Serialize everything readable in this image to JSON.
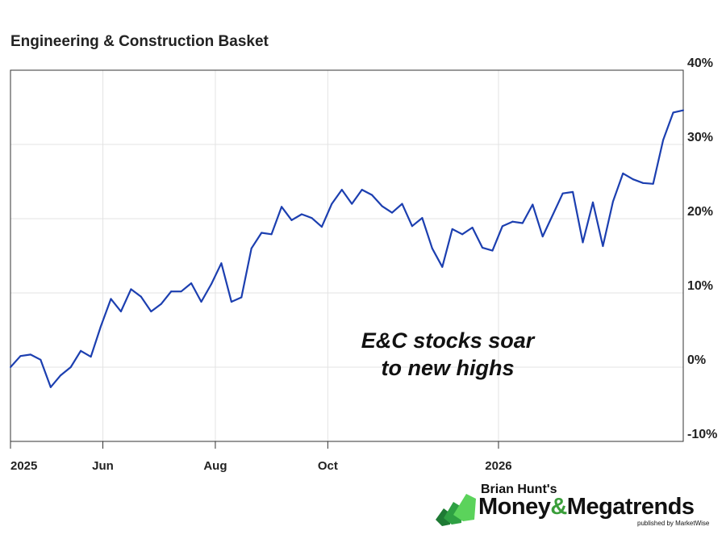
{
  "chart_data": {
    "type": "line",
    "title": "Engineering & Construction Basket",
    "y_ticks": [
      "40%",
      "30%",
      "20%",
      "10%",
      "0%",
      "-10%"
    ],
    "y_tick_values": [
      40,
      30,
      20,
      10,
      0,
      -10
    ],
    "ylim": [
      -10,
      40
    ],
    "x_ticks": [
      "2025",
      "Jun",
      "Aug",
      "Oct",
      "2026"
    ],
    "x_tick_positions": [
      0,
      9.2,
      20.4,
      31.6,
      48.6
    ],
    "xlim": [
      0,
      67
    ],
    "annotation_line1": "E&C stocks soar",
    "annotation_line2": "to new highs",
    "line_color": "#1c3fb0",
    "series": [
      {
        "name": "Engineering & Construction Basket",
        "values": [
          0.0,
          1.5,
          1.7,
          1.0,
          -2.7,
          -1.1,
          0.0,
          2.2,
          1.4,
          5.5,
          9.2,
          7.5,
          10.5,
          9.5,
          7.5,
          8.5,
          10.2,
          10.2,
          11.3,
          8.8,
          11.2,
          14.0,
          8.8,
          9.4,
          16.0,
          18.1,
          17.9,
          21.6,
          19.8,
          20.6,
          20.1,
          18.9,
          22.0,
          23.9,
          22.0,
          23.9,
          23.2,
          21.7,
          20.8,
          22.0,
          19.0,
          20.1,
          16.0,
          13.5,
          18.6,
          17.9,
          18.8,
          16.1,
          15.7,
          19.0,
          19.6,
          19.4,
          21.9,
          17.6,
          20.5,
          23.4,
          23.6,
          16.8,
          22.2,
          16.3,
          22.3,
          26.1,
          25.3,
          24.8,
          24.7,
          30.6,
          34.3,
          34.6
        ]
      }
    ]
  },
  "logo": {
    "top_line": "Brian Hunt's",
    "word1": "Money",
    "amp": "&",
    "word2": "Megatrends",
    "publisher": "published by MarketWise"
  }
}
